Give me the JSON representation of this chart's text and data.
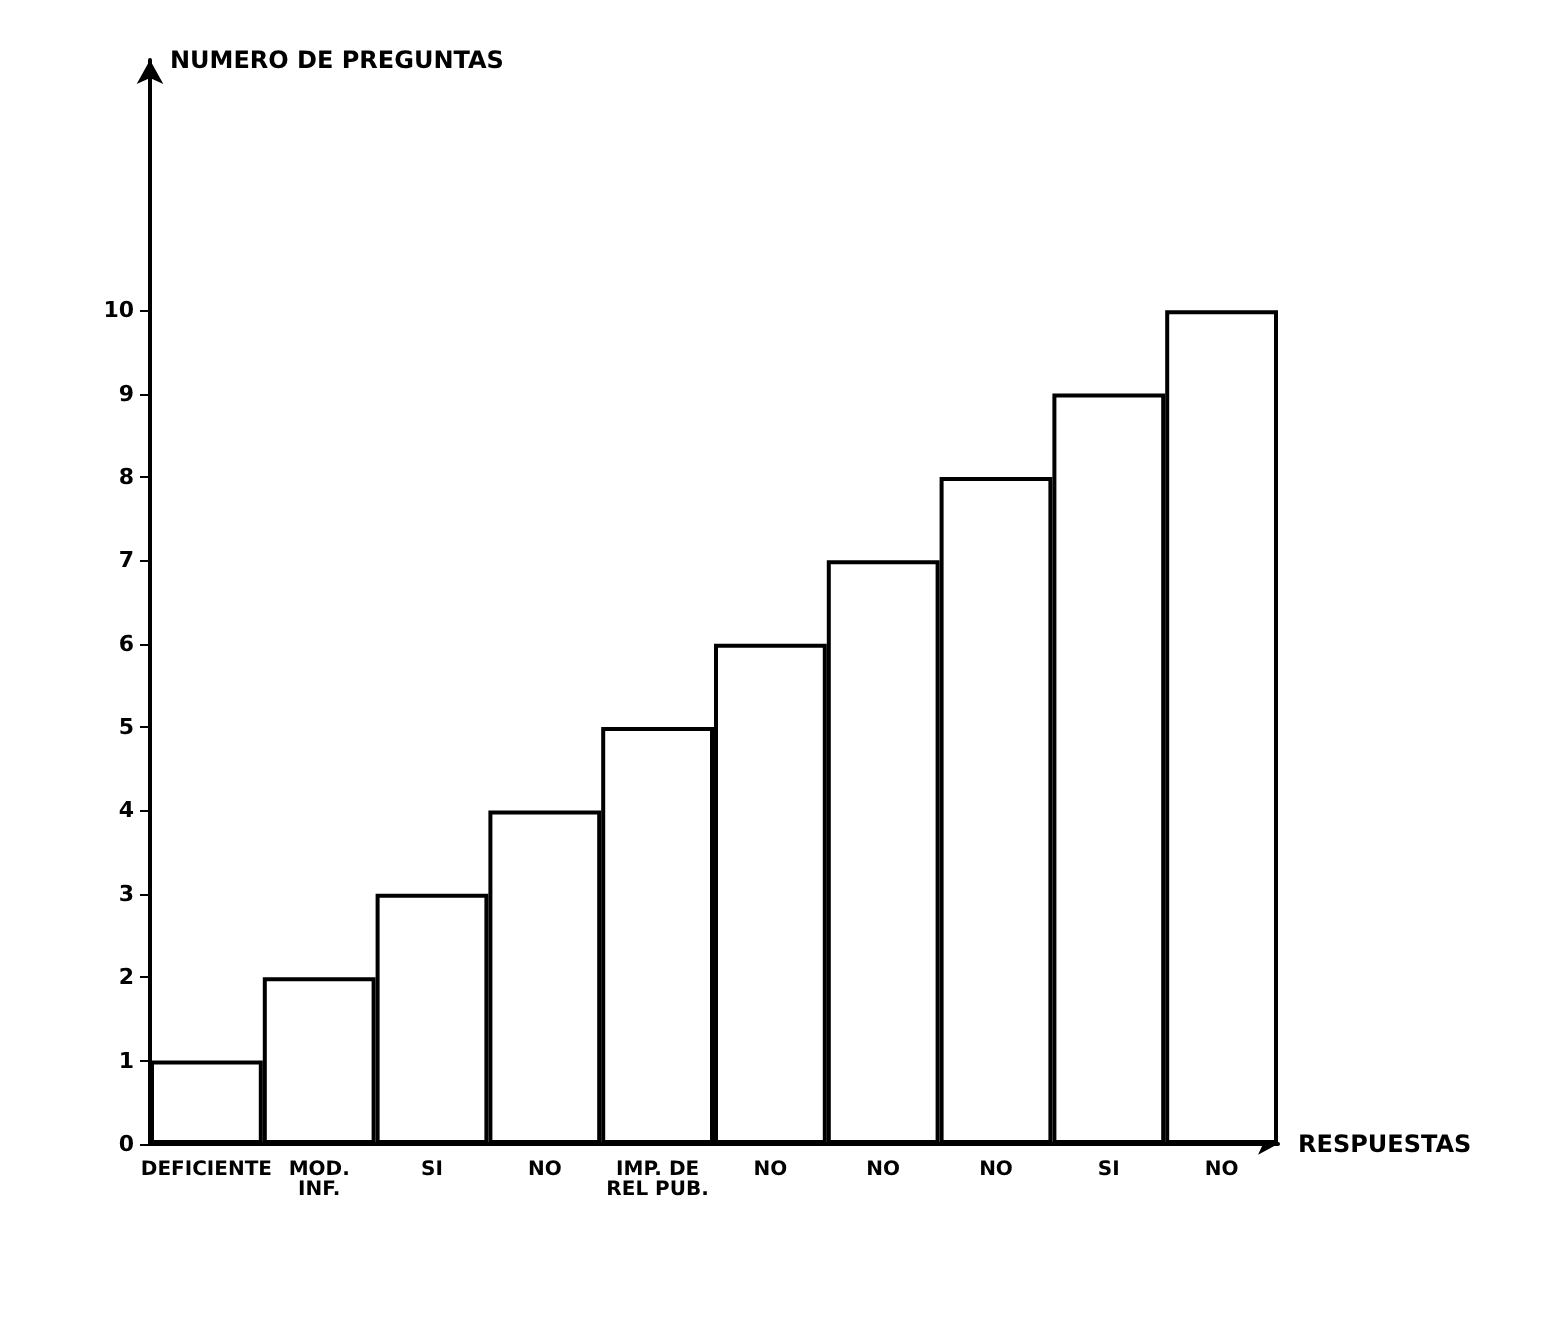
{
  "chart_data": {
    "type": "bar",
    "xlabel": "RESPUESTAS",
    "ylabel": "NUMERO DE PREGUNTAS",
    "categories": [
      "DEFICIENTE",
      "MOD.\nINF.",
      "SI",
      "NO",
      "IMP. DE\nREL PUB.",
      "NO",
      "NO",
      "NO",
      "SI",
      "NO"
    ],
    "values": [
      1,
      2,
      3,
      4,
      5,
      6,
      7,
      8,
      9,
      10
    ],
    "color": "#ffffff",
    "ylim": [
      0,
      13
    ],
    "yticks": [
      0,
      1,
      2,
      3,
      4,
      5,
      6,
      7,
      8,
      9,
      10
    ],
    "grid": false
  }
}
